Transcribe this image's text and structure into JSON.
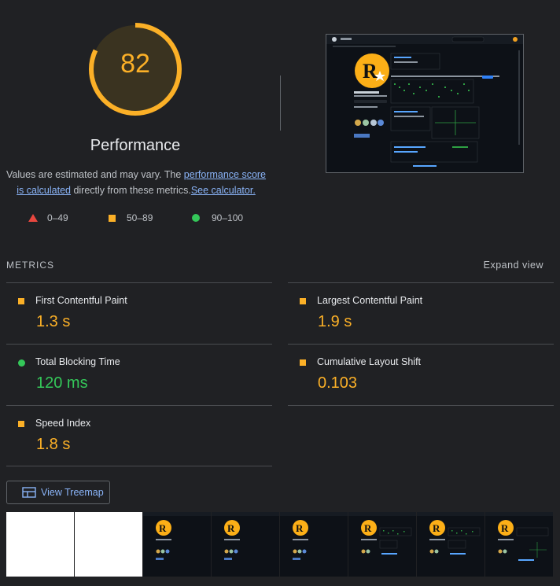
{
  "gauge": {
    "score": "82",
    "score_fraction": 0.82,
    "title": "Performance",
    "color": "#fbb027"
  },
  "description": {
    "text1": "Values are estimated and may vary. The ",
    "link1": "performance score is calculated",
    "text2": " directly from these metrics.",
    "link2": "See calculator."
  },
  "legend": [
    {
      "range": "0–49",
      "color": "#e8473f",
      "icon": "triangle-icon"
    },
    {
      "range": "50–89",
      "color": "#fbb027",
      "icon": "square-icon"
    },
    {
      "range": "90–100",
      "color": "#34c759",
      "icon": "circle-icon"
    }
  ],
  "metrics_header": {
    "title": "METRICS",
    "expand": "Expand view"
  },
  "metrics": [
    {
      "label": "First Contentful Paint",
      "value": "1.3 s",
      "status": "average"
    },
    {
      "label": "Largest Contentful Paint",
      "value": "1.9 s",
      "status": "average"
    },
    {
      "label": "Total Blocking Time",
      "value": "120 ms",
      "status": "pass"
    },
    {
      "label": "Cumulative Layout Shift",
      "value": "0.103",
      "status": "average"
    },
    {
      "label": "Speed Index",
      "value": "1.8 s",
      "status": "average"
    }
  ],
  "treemap_button": {
    "label": "View Treemap"
  },
  "filmstrip": {
    "frames": [
      "blank",
      "blank",
      "page",
      "page",
      "page",
      "page",
      "page",
      "page"
    ]
  },
  "colors": {
    "background": "#202124",
    "average": "#fbb027",
    "pass": "#34c759",
    "fail": "#e8473f",
    "link": "#8ab4f8"
  }
}
